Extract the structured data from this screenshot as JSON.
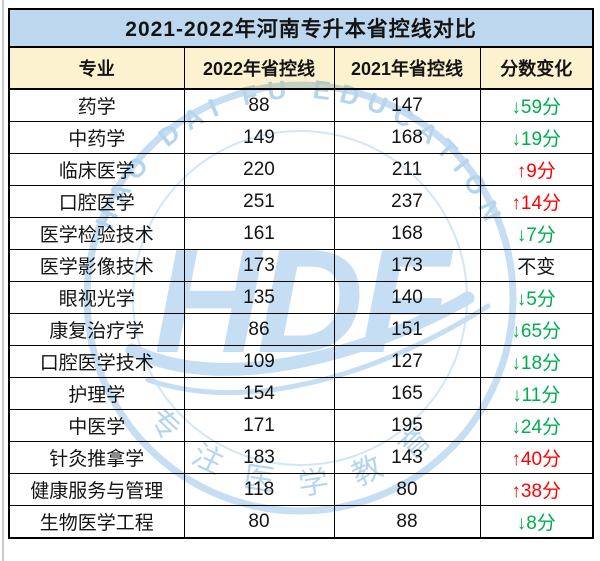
{
  "title": "2021-2022年河南专升本省控线对比",
  "colors": {
    "title_bg": "#BDD7EE",
    "header_bg": "#FDF2D0",
    "increase": "#FF0000",
    "decrease": "#00AD4F",
    "watermark_blue": "#BCD9F1",
    "watermark_text_blue": "#A9CEEC"
  },
  "watermark": {
    "center_text": "HDF",
    "top_arc_text": "HAO DAI FU EDUCATION",
    "bottom_arc_text": "专注医学教育"
  },
  "chart_data": {
    "type": "table",
    "title": "2021-2022年河南专升本省控线对比",
    "columns": [
      "专业",
      "2022年省控线",
      "2021年省控线",
      "分数变化"
    ],
    "rows": [
      {
        "major": "药学",
        "line_2022": 88,
        "line_2021": 147,
        "change": "↓59分",
        "direction": "down"
      },
      {
        "major": "中药学",
        "line_2022": 149,
        "line_2021": 168,
        "change": "↓19分",
        "direction": "down"
      },
      {
        "major": "临床医学",
        "line_2022": 220,
        "line_2021": 211,
        "change": "↑9分",
        "direction": "up"
      },
      {
        "major": "口腔医学",
        "line_2022": 251,
        "line_2021": 237,
        "change": "↑14分",
        "direction": "up"
      },
      {
        "major": "医学检验技术",
        "line_2022": 161,
        "line_2021": 168,
        "change": "↓7分",
        "direction": "down"
      },
      {
        "major": "医学影像技术",
        "line_2022": 173,
        "line_2021": 173,
        "change": "不变",
        "direction": "same"
      },
      {
        "major": "眼视光学",
        "line_2022": 135,
        "line_2021": 140,
        "change": "↓5分",
        "direction": "down"
      },
      {
        "major": "康复治疗学",
        "line_2022": 86,
        "line_2021": 151,
        "change": "↓65分",
        "direction": "down"
      },
      {
        "major": "口腔医学技术",
        "line_2022": 109,
        "line_2021": 127,
        "change": "↓18分",
        "direction": "down"
      },
      {
        "major": "护理学",
        "line_2022": 154,
        "line_2021": 165,
        "change": "↓11分",
        "direction": "down"
      },
      {
        "major": "中医学",
        "line_2022": 171,
        "line_2021": 195,
        "change": "↓24分",
        "direction": "down"
      },
      {
        "major": "针灸推拿学",
        "line_2022": 183,
        "line_2021": 143,
        "change": "↑40分",
        "direction": "up"
      },
      {
        "major": "健康服务与管理",
        "line_2022": 118,
        "line_2021": 80,
        "change": "↑38分",
        "direction": "up"
      },
      {
        "major": "生物医学工程",
        "line_2022": 80,
        "line_2021": 88,
        "change": "↓8分",
        "direction": "down"
      }
    ]
  }
}
